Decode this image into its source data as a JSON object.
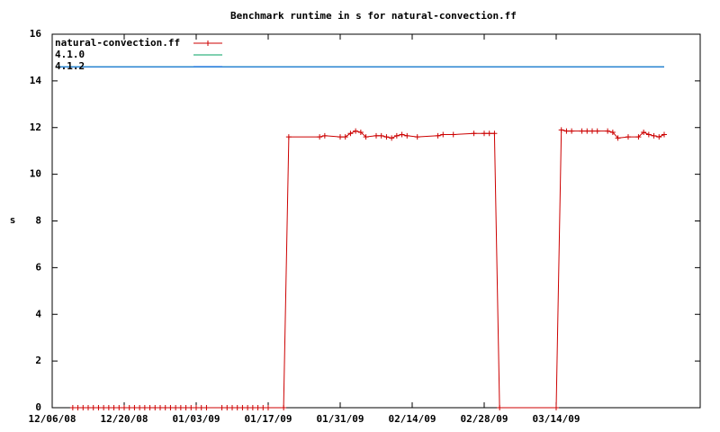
{
  "chart_data": {
    "type": "line",
    "title": "Benchmark runtime in s for natural-convection.ff",
    "y_label": "s",
    "xlim": [
      "12/06/08",
      "04/11/09"
    ],
    "xticks": [
      "12/06/08",
      "12/20/08",
      "01/03/09",
      "01/17/09",
      "01/31/09",
      "02/14/09",
      "02/28/09",
      "03/14/09"
    ],
    "ylim": [
      0,
      16
    ],
    "yticks": [
      0,
      2,
      4,
      6,
      8,
      10,
      12,
      14,
      16
    ],
    "grid": false,
    "legend": "top-left",
    "series": [
      {
        "name": "natural-convection.ff",
        "color": "#cc0000",
        "marker": "+",
        "x": [
          "12/10/08",
          "12/11/08",
          "12/12/08",
          "12/13/08",
          "12/14/08",
          "12/15/08",
          "12/16/08",
          "12/17/08",
          "12/18/08",
          "12/19/08",
          "12/20/08",
          "12/21/08",
          "12/22/08",
          "12/23/08",
          "12/24/08",
          "12/25/08",
          "12/26/08",
          "12/27/08",
          "12/28/08",
          "12/29/08",
          "12/30/08",
          "12/31/08",
          "01/01/09",
          "01/02/09",
          "01/03/09",
          "01/04/09",
          "01/05/09",
          "01/08/09",
          "01/09/09",
          "01/10/09",
          "01/11/09",
          "01/12/09",
          "01/13/09",
          "01/14/09",
          "01/15/09",
          "01/16/09",
          "01/17/09",
          "01/20/09",
          "01/21/09",
          "01/27/09",
          "01/28/09",
          "01/31/09",
          "02/01/09",
          "02/02/09",
          "02/03/09",
          "02/04/09",
          "02/05/09",
          "02/07/09",
          "02/08/09",
          "02/09/09",
          "02/10/09",
          "02/11/09",
          "02/12/09",
          "02/13/09",
          "02/15/09",
          "02/19/09",
          "02/20/09",
          "02/22/09",
          "02/26/09",
          "02/28/09",
          "03/01/09",
          "03/02/09",
          "03/03/09",
          "03/14/09",
          "03/15/09",
          "03/16/09",
          "03/17/09",
          "03/19/09",
          "03/20/09",
          "03/21/09",
          "03/22/09",
          "03/24/09",
          "03/25/09",
          "03/26/09",
          "03/28/09",
          "03/30/09",
          "03/31/09",
          "04/01/09",
          "04/02/09",
          "04/03/09",
          "04/04/09"
        ],
        "values": [
          0,
          0,
          0,
          0,
          0,
          0,
          0,
          0,
          0,
          0,
          0,
          0,
          0,
          0,
          0,
          0,
          0,
          0,
          0,
          0,
          0,
          0,
          0,
          0,
          0,
          0,
          0,
          0,
          0,
          0,
          0,
          0,
          0,
          0,
          0,
          0,
          0,
          0,
          11.6,
          11.6,
          11.65,
          11.6,
          11.6,
          11.75,
          11.85,
          11.8,
          11.6,
          11.65,
          11.65,
          11.6,
          11.55,
          11.65,
          11.7,
          11.65,
          11.6,
          11.65,
          11.7,
          11.7,
          11.75,
          11.75,
          11.75,
          11.75,
          0,
          0,
          11.9,
          11.85,
          11.85,
          11.85,
          11.85,
          11.85,
          11.85,
          11.85,
          11.8,
          11.55,
          11.6,
          11.6,
          11.8,
          11.7,
          11.65,
          11.6,
          11.7
        ]
      },
      {
        "name": "4.1.0",
        "color": "#00a060",
        "x": [
          "12/07/08",
          "04/04/09"
        ],
        "values": [
          14.6,
          14.6
        ]
      },
      {
        "name": "4.1.2",
        "color": "#0060e0",
        "x": [
          "12/07/08",
          "04/04/09"
        ],
        "values": [
          14.6,
          14.6
        ]
      }
    ]
  }
}
